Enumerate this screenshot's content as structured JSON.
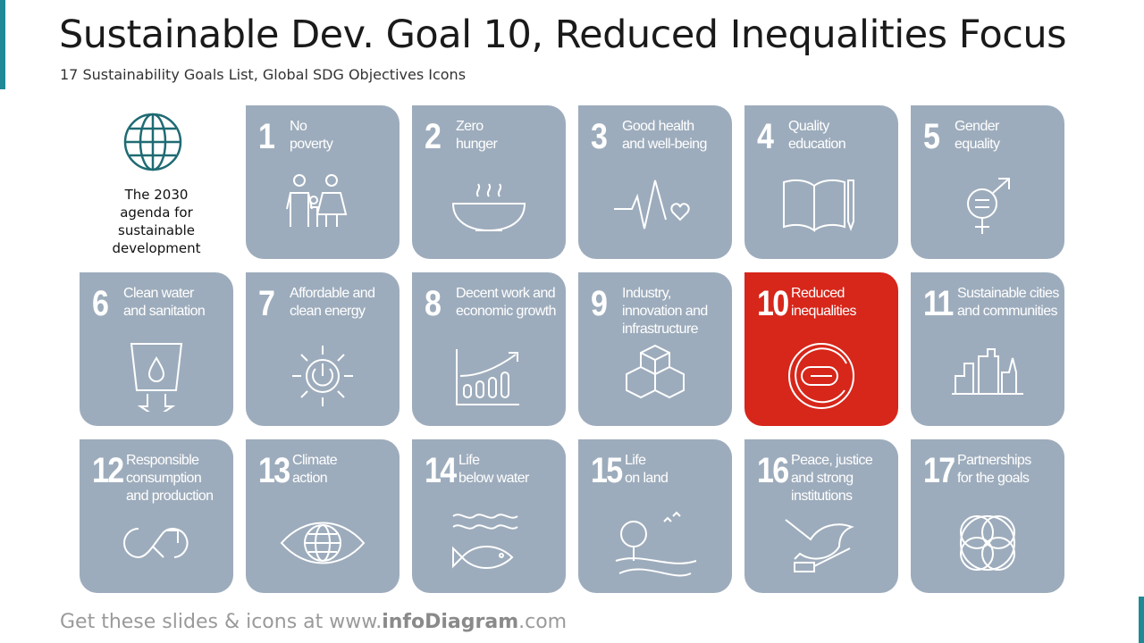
{
  "header": {
    "title": "Sustainable Dev. Goal 10, Reduced Inequalities Focus",
    "subtitle": "17 Sustainability Goals List, Global SDG Objectives Icons"
  },
  "intro": {
    "label": "The 2030\nagenda for\nsustainable\ndevelopment"
  },
  "tiles": [
    {
      "number": "1",
      "label": "No\npoverty"
    },
    {
      "number": "2",
      "label": "Zero\nhunger"
    },
    {
      "number": "3",
      "label": "Good health\nand well-being"
    },
    {
      "number": "4",
      "label": "Quality\neducation"
    },
    {
      "number": "5",
      "label": "Gender\nequality"
    },
    {
      "number": "6",
      "label": "Clean water\nand sanitation"
    },
    {
      "number": "7",
      "label": "Affordable and\nclean energy"
    },
    {
      "number": "8",
      "label": "Decent work and\neconomic growth"
    },
    {
      "number": "9",
      "label": "Industry,\ninnovation and\ninfrastructure"
    },
    {
      "number": "10",
      "label": "Reduced\ninequalities",
      "highlight": true
    },
    {
      "number": "11",
      "label": "Sustainable cities\nand communities"
    },
    {
      "number": "12",
      "label": "Responsible\nconsumption\nand production"
    },
    {
      "number": "13",
      "label": "Climate\naction"
    },
    {
      "number": "14",
      "label": "Life\nbelow water"
    },
    {
      "number": "15",
      "label": "Life\non land"
    },
    {
      "number": "16",
      "label": "Peace, justice\nand strong\ninstitutions"
    },
    {
      "number": "17",
      "label": "Partnerships\nfor the goals"
    }
  ],
  "footer": {
    "prefix": "Get these slides & icons at www.",
    "brand": "infoDiagram",
    "suffix": ".com"
  }
}
